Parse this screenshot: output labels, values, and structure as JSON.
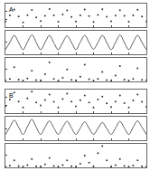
{
  "chart_data": [
    {
      "type": "scatter",
      "title": "A",
      "marker": "circle",
      "color": "#333333",
      "x": [
        0,
        0.25,
        0.5,
        0.75,
        1,
        1.25,
        1.5,
        1.75,
        2,
        2.25,
        2.5,
        2.75,
        3,
        3.25,
        3.5,
        3.75,
        4,
        4.25,
        4.5,
        4.75,
        5,
        5.25,
        5.5,
        5.75,
        6,
        6.25,
        6.5,
        6.75,
        7,
        7.25,
        7.5,
        7.75,
        8
      ],
      "values": [
        0.3,
        0.6,
        0.9,
        0.55,
        0.25,
        0.62,
        0.88,
        0.5,
        0.32,
        0.58,
        0.92,
        0.6,
        0.28,
        0.65,
        0.86,
        0.52,
        0.3,
        0.6,
        0.9,
        0.57,
        0.27,
        0.63,
        0.91,
        0.54,
        0.31,
        0.59,
        0.87,
        0.58,
        0.29,
        0.61,
        0.89,
        0.55,
        0.3
      ],
      "xlim": [
        0,
        8
      ],
      "xticks": [
        0,
        1,
        2,
        3,
        4,
        5,
        6,
        7,
        8
      ],
      "ylim": [
        0,
        1.2
      ],
      "yticks": [
        0,
        0.4,
        0.8,
        1.2
      ],
      "tick_labels": false
    },
    {
      "type": "line",
      "color": "#333333",
      "x": [
        0,
        0.25,
        0.5,
        0.75,
        1,
        1.25,
        1.5,
        1.75,
        2,
        2.25,
        2.5,
        2.75,
        3,
        3.25,
        3.5,
        3.75,
        4,
        4.25,
        4.5,
        4.75,
        5,
        5.25,
        5.5,
        5.75,
        6,
        6.25,
        6.5,
        6.75,
        7,
        7.25,
        7.5,
        7.75,
        8
      ],
      "values": [
        0.2,
        0.5,
        0.8,
        0.5,
        0.2,
        0.52,
        0.82,
        0.5,
        0.2,
        0.5,
        0.8,
        0.48,
        0.2,
        0.5,
        0.78,
        0.5,
        0.2,
        0.52,
        0.8,
        0.5,
        0.22,
        0.5,
        0.8,
        0.5,
        0.2,
        0.5,
        0.82,
        0.5,
        0.2,
        0.5,
        0.8,
        0.5,
        0.2
      ],
      "xlim": [
        0,
        8
      ],
      "xticks": [
        0,
        1,
        2,
        3,
        4,
        5,
        6,
        7,
        8
      ],
      "ylim": [
        0,
        1
      ],
      "yticks": [
        0,
        0.5,
        1
      ],
      "tick_labels": false
    },
    {
      "type": "scatter",
      "marker": "circle",
      "color": "#333333",
      "x": [
        0,
        0.25,
        0.5,
        0.75,
        1,
        1.25,
        1.5,
        1.75,
        2,
        2.25,
        2.5,
        2.75,
        3,
        3.25,
        3.5,
        3.75,
        4,
        4.25,
        4.5,
        4.75,
        5,
        5.25,
        5.5,
        5.75,
        6,
        6.25,
        6.5,
        6.75,
        7,
        7.25,
        7.5,
        7.75,
        8
      ],
      "values": [
        0.05,
        0.1,
        0.6,
        0.08,
        0.04,
        0.12,
        0.45,
        0.06,
        0.05,
        0.3,
        0.8,
        0.1,
        0.03,
        0.15,
        0.5,
        0.07,
        0.05,
        0.2,
        0.7,
        0.09,
        0.04,
        0.1,
        0.4,
        0.06,
        0.05,
        0.25,
        0.65,
        0.08,
        0.04,
        0.1,
        0.55,
        0.07,
        0.05
      ],
      "xlim": [
        0,
        8
      ],
      "xticks": [
        0,
        1,
        2,
        3,
        4,
        5,
        6,
        7,
        8
      ],
      "ylim": [
        0,
        1
      ],
      "yticks": [
        0,
        0.5,
        1
      ],
      "tick_labels": false
    },
    {
      "type": "scatter",
      "title": "B",
      "marker": "circle",
      "color": "#333333",
      "x": [
        0,
        0.25,
        0.5,
        0.75,
        1,
        1.25,
        1.5,
        1.75,
        2,
        2.25,
        2.5,
        2.75,
        3,
        3.25,
        3.5,
        3.75,
        4,
        4.25,
        4.5,
        4.75,
        5,
        5.25,
        5.5,
        5.75,
        6,
        6.25,
        6.5,
        6.75,
        7,
        7.25,
        7.5,
        7.75,
        8
      ],
      "values": [
        0.35,
        0.7,
        1.05,
        0.6,
        0.3,
        0.75,
        1.1,
        0.55,
        0.4,
        0.68,
        0.95,
        0.58,
        0.3,
        0.72,
        1.0,
        0.6,
        0.35,
        0.66,
        0.9,
        0.55,
        0.3,
        0.7,
        0.85,
        0.5,
        0.32,
        0.6,
        0.9,
        0.52,
        0.3,
        0.65,
        0.95,
        0.58,
        0.33
      ],
      "xlim": [
        0,
        8
      ],
      "xticks": [
        0,
        1,
        2,
        3,
        4,
        5,
        6,
        7,
        8
      ],
      "ylim": [
        0,
        1.2
      ],
      "yticks": [
        0,
        0.4,
        0.8,
        1.2
      ],
      "tick_labels": false
    },
    {
      "type": "line",
      "color": "#333333",
      "x": [
        0,
        0.25,
        0.5,
        0.75,
        1,
        1.25,
        1.5,
        1.75,
        2,
        2.25,
        2.5,
        2.75,
        3,
        3.25,
        3.5,
        3.75,
        4,
        4.25,
        4.5,
        4.75,
        5,
        5.25,
        5.5,
        5.75,
        6,
        6.25,
        6.5,
        6.75,
        7,
        7.25,
        7.5,
        7.75,
        8
      ],
      "values": [
        0.25,
        0.55,
        0.85,
        0.55,
        0.25,
        0.58,
        0.88,
        0.55,
        0.25,
        0.55,
        0.82,
        0.52,
        0.25,
        0.55,
        0.8,
        0.52,
        0.25,
        0.52,
        0.78,
        0.5,
        0.25,
        0.5,
        0.75,
        0.5,
        0.25,
        0.52,
        0.8,
        0.52,
        0.25,
        0.55,
        0.82,
        0.55,
        0.25
      ],
      "xlim": [
        0,
        8
      ],
      "xticks": [
        0,
        1,
        2,
        3,
        4,
        5,
        6,
        7,
        8
      ],
      "ylim": [
        0,
        1
      ],
      "yticks": [
        0,
        0.5,
        1
      ],
      "tick_labels": false
    },
    {
      "type": "scatter",
      "marker": "circle",
      "color": "#333333",
      "x": [
        0,
        0.25,
        0.5,
        0.75,
        1,
        1.25,
        1.5,
        1.75,
        2,
        2.25,
        2.5,
        2.75,
        3,
        3.25,
        3.5,
        3.75,
        4,
        4.25,
        4.5,
        4.75,
        5,
        5.25,
        5.5,
        5.75,
        6,
        6.25,
        6.5,
        6.75,
        7,
        7.25,
        7.5,
        7.75,
        8
      ],
      "values": [
        0.04,
        0.08,
        0.3,
        0.06,
        0.03,
        0.1,
        0.35,
        0.05,
        0.04,
        0.12,
        0.4,
        0.06,
        0.03,
        0.1,
        0.3,
        0.05,
        0.04,
        0.15,
        0.5,
        0.2,
        0.05,
        0.6,
        0.9,
        0.3,
        0.04,
        0.1,
        0.35,
        0.06,
        0.03,
        0.08,
        0.3,
        0.05,
        0.04
      ],
      "xlim": [
        0,
        8
      ],
      "xticks": [
        0,
        1,
        2,
        3,
        4,
        5,
        6,
        7,
        8
      ],
      "ylim": [
        0,
        1
      ],
      "yticks": [
        0,
        0.5,
        1
      ],
      "tick_labels": false
    }
  ]
}
